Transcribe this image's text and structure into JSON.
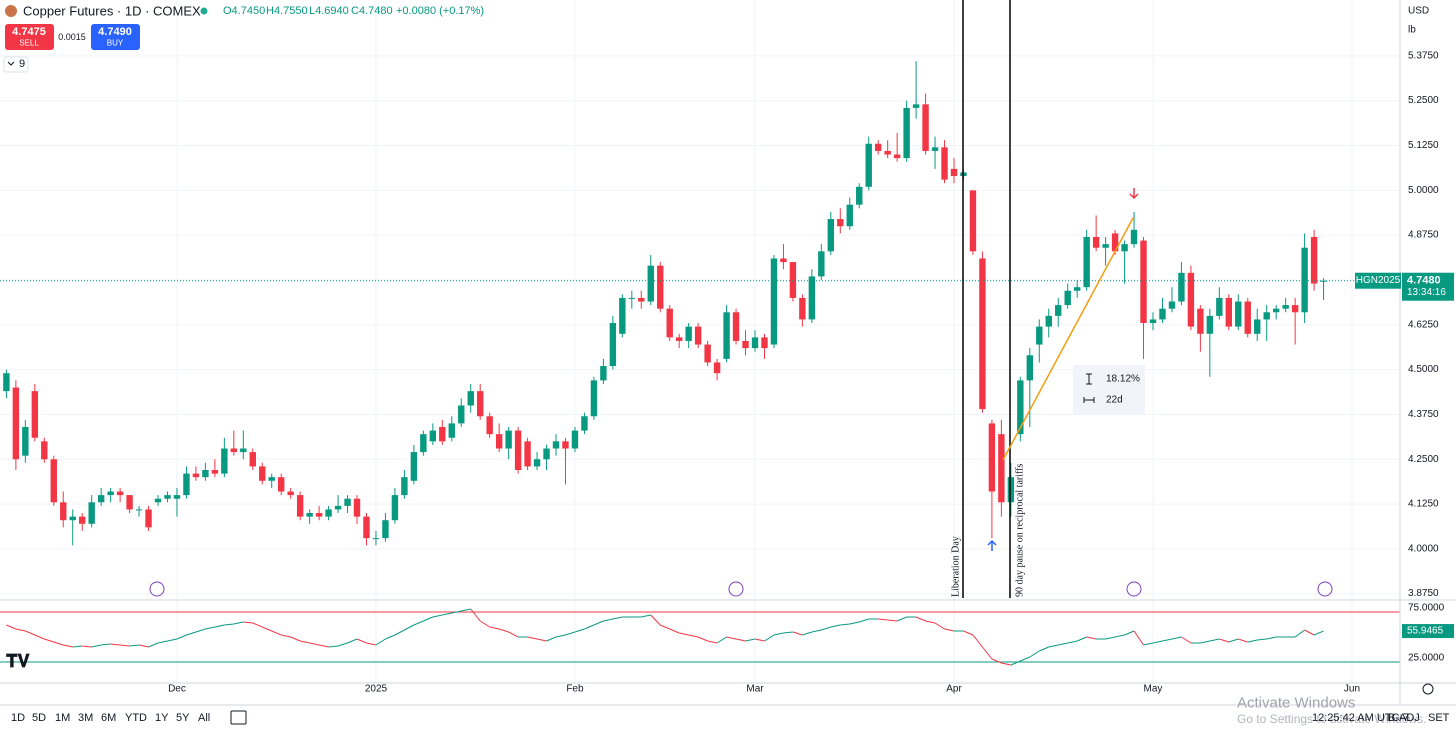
{
  "header": {
    "title": "Copper Futures · 1D · COMEX",
    "open": "O4.7450",
    "high": "H4.7550",
    "low": "L4.6940",
    "close": "C4.7480",
    "change": "+0.0080 (+0.17%)",
    "sell_price": "4.7475",
    "sell": "SELL",
    "spread": "0.0015",
    "buy_price": "4.7490",
    "buy": "BUY",
    "indicators": "9",
    "currency": "USD",
    "unit": "lb"
  },
  "toolbar": {
    "ranges": [
      "1D",
      "5D",
      "1M",
      "3M",
      "6M",
      "YTD",
      "1Y",
      "5Y",
      "All"
    ],
    "clock": "12:25:42 AM UTC-7",
    "adjust": "B-ADJ",
    "settlement": "SET"
  },
  "watermark": {
    "title": "Activate Windows",
    "text": "Go to Settings to activate Windows."
  },
  "chart_data": [
    {
      "type": "candlestick",
      "up_color": "#089981",
      "down_color": "#f23645",
      "grid": true,
      "categories": [
        null,
        null,
        null,
        null,
        null,
        null,
        null,
        null,
        null,
        null,
        null,
        null,
        null,
        null,
        null,
        null,
        null,
        null,
        "Dec",
        null,
        null,
        null,
        null,
        null,
        null,
        null,
        null,
        null,
        null,
        null,
        null,
        null,
        null,
        null,
        null,
        null,
        null,
        null,
        null,
        "2025",
        null,
        null,
        null,
        null,
        null,
        null,
        null,
        null,
        null,
        null,
        null,
        null,
        null,
        null,
        null,
        null,
        null,
        null,
        null,
        null,
        "Feb",
        null,
        null,
        null,
        null,
        null,
        null,
        null,
        null,
        null,
        null,
        null,
        null,
        null,
        null,
        null,
        null,
        null,
        null,
        "Mar",
        null,
        null,
        null,
        null,
        null,
        null,
        null,
        null,
        null,
        null,
        null,
        null,
        null,
        null,
        null,
        null,
        null,
        null,
        null,
        null,
        "Apr",
        null,
        null,
        null,
        null,
        null,
        null,
        null,
        null,
        null,
        null,
        null,
        null,
        null,
        null,
        null,
        null,
        null,
        null,
        null,
        null,
        "May",
        null,
        null,
        null,
        null,
        null,
        null,
        null,
        null,
        null,
        null,
        null,
        null,
        null,
        null,
        null,
        null,
        null,
        null,
        null,
        null,
        "Jun"
      ],
      "ohlc": [
        [
          4.44,
          4.5,
          4.42,
          4.49
        ],
        [
          4.45,
          4.47,
          4.22,
          4.25
        ],
        [
          4.26,
          4.36,
          4.24,
          4.34
        ],
        [
          4.44,
          4.46,
          4.3,
          4.31
        ],
        [
          4.3,
          4.31,
          4.24,
          4.25
        ],
        [
          4.25,
          4.26,
          4.12,
          4.13
        ],
        [
          4.13,
          4.16,
          4.06,
          4.08
        ],
        [
          4.08,
          4.11,
          4.01,
          4.09
        ],
        [
          4.09,
          4.1,
          4.05,
          4.07
        ],
        [
          4.07,
          4.15,
          4.06,
          4.13
        ],
        [
          4.13,
          4.17,
          4.12,
          4.15
        ],
        [
          4.15,
          4.17,
          4.13,
          4.16
        ],
        [
          4.16,
          4.17,
          4.13,
          4.15
        ],
        [
          4.15,
          4.15,
          4.1,
          4.11
        ],
        [
          4.11,
          4.12,
          4.09,
          4.11
        ],
        [
          4.11,
          4.12,
          4.05,
          4.06
        ],
        [
          4.13,
          4.15,
          4.12,
          4.14
        ],
        [
          4.14,
          4.16,
          4.13,
          4.15
        ],
        [
          4.14,
          4.17,
          4.09,
          4.15
        ],
        [
          4.15,
          4.23,
          4.14,
          4.21
        ],
        [
          4.21,
          4.23,
          4.19,
          4.2
        ],
        [
          4.2,
          4.24,
          4.19,
          4.22
        ],
        [
          4.22,
          4.25,
          4.2,
          4.21
        ],
        [
          4.21,
          4.31,
          4.2,
          4.28
        ],
        [
          4.28,
          4.33,
          4.26,
          4.27
        ],
        [
          4.27,
          4.33,
          4.25,
          4.28
        ],
        [
          4.27,
          4.28,
          4.22,
          4.23
        ],
        [
          4.23,
          4.24,
          4.18,
          4.19
        ],
        [
          4.19,
          4.21,
          4.17,
          4.2
        ],
        [
          4.2,
          4.21,
          4.15,
          4.16
        ],
        [
          4.16,
          4.17,
          4.14,
          4.15
        ],
        [
          4.15,
          4.16,
          4.08,
          4.09
        ],
        [
          4.09,
          4.11,
          4.07,
          4.1
        ],
        [
          4.1,
          4.12,
          4.08,
          4.09
        ],
        [
          4.09,
          4.12,
          4.08,
          4.11
        ],
        [
          4.11,
          4.15,
          4.1,
          4.12
        ],
        [
          4.12,
          4.15,
          4.1,
          4.14
        ],
        [
          4.14,
          4.15,
          4.07,
          4.09
        ],
        [
          4.09,
          4.1,
          4.01,
          4.03
        ],
        [
          4.03,
          4.05,
          4.01,
          4.03
        ],
        [
          4.03,
          4.1,
          4.02,
          4.08
        ],
        [
          4.08,
          4.17,
          4.07,
          4.15
        ],
        [
          4.15,
          4.22,
          4.14,
          4.2
        ],
        [
          4.19,
          4.29,
          4.18,
          4.27
        ],
        [
          4.27,
          4.33,
          4.26,
          4.32
        ],
        [
          4.3,
          4.35,
          4.29,
          4.33
        ],
        [
          4.34,
          4.36,
          4.29,
          4.3
        ],
        [
          4.31,
          4.37,
          4.3,
          4.35
        ],
        [
          4.35,
          4.42,
          4.34,
          4.4
        ],
        [
          4.4,
          4.46,
          4.38,
          4.44
        ],
        [
          4.44,
          4.46,
          4.36,
          4.37
        ],
        [
          4.37,
          4.38,
          4.31,
          4.32
        ],
        [
          4.32,
          4.35,
          4.27,
          4.28
        ],
        [
          4.28,
          4.34,
          4.25,
          4.33
        ],
        [
          4.33,
          4.34,
          4.21,
          4.22
        ],
        [
          4.3,
          4.31,
          4.22,
          4.23
        ],
        [
          4.23,
          4.27,
          4.22,
          4.25
        ],
        [
          4.25,
          4.29,
          4.22,
          4.28
        ],
        [
          4.28,
          4.32,
          4.26,
          4.3
        ],
        [
          4.3,
          4.31,
          4.18,
          4.28
        ],
        [
          4.28,
          4.34,
          4.27,
          4.33
        ],
        [
          4.33,
          4.38,
          4.32,
          4.37
        ],
        [
          4.37,
          4.48,
          4.36,
          4.47
        ],
        [
          4.47,
          4.53,
          4.46,
          4.51
        ],
        [
          4.51,
          4.65,
          4.5,
          4.63
        ],
        [
          4.6,
          4.71,
          4.59,
          4.7
        ],
        [
          4.7,
          4.72,
          4.67,
          4.7
        ],
        [
          4.7,
          4.72,
          4.67,
          4.69
        ],
        [
          4.69,
          4.82,
          4.68,
          4.79
        ],
        [
          4.79,
          4.8,
          4.66,
          4.67
        ],
        [
          4.67,
          4.68,
          4.58,
          4.59
        ],
        [
          4.59,
          4.6,
          4.56,
          4.58
        ],
        [
          4.58,
          4.63,
          4.56,
          4.62
        ],
        [
          4.62,
          4.63,
          4.56,
          4.57
        ],
        [
          4.57,
          4.58,
          4.51,
          4.52
        ],
        [
          4.52,
          4.53,
          4.47,
          4.49
        ],
        [
          4.53,
          4.68,
          4.52,
          4.66
        ],
        [
          4.66,
          4.67,
          4.57,
          4.58
        ],
        [
          4.58,
          4.61,
          4.54,
          4.56
        ],
        [
          4.56,
          4.61,
          4.55,
          4.59
        ],
        [
          4.59,
          4.6,
          4.53,
          4.56
        ],
        [
          4.57,
          4.82,
          4.56,
          4.81
        ],
        [
          4.81,
          4.85,
          4.78,
          4.8
        ],
        [
          4.8,
          4.8,
          4.69,
          4.7
        ],
        [
          4.7,
          4.71,
          4.62,
          4.64
        ],
        [
          4.64,
          4.78,
          4.63,
          4.76
        ],
        [
          4.76,
          4.85,
          4.75,
          4.83
        ],
        [
          4.83,
          4.94,
          4.82,
          4.92
        ],
        [
          4.92,
          4.95,
          4.88,
          4.9
        ],
        [
          4.9,
          4.98,
          4.89,
          4.96
        ],
        [
          4.96,
          5.02,
          4.95,
          5.01
        ],
        [
          5.01,
          5.15,
          5.0,
          5.13
        ],
        [
          5.13,
          5.14,
          5.1,
          5.11
        ],
        [
          5.11,
          5.14,
          5.09,
          5.1
        ],
        [
          5.1,
          5.16,
          5.08,
          5.09
        ],
        [
          5.09,
          5.25,
          5.08,
          5.23
        ],
        [
          5.23,
          5.36,
          5.2,
          5.24
        ],
        [
          5.24,
          5.27,
          5.1,
          5.11
        ],
        [
          5.11,
          5.15,
          5.06,
          5.12
        ],
        [
          5.12,
          5.14,
          5.02,
          5.03
        ],
        [
          5.06,
          5.09,
          5.02,
          5.04
        ],
        [
          5.04,
          5.06,
          5.03,
          5.05
        ],
        [
          5.0,
          5.0,
          4.82,
          4.83
        ],
        [
          4.81,
          4.83,
          4.38,
          4.39
        ],
        [
          4.35,
          4.36,
          4.03,
          4.16
        ],
        [
          4.32,
          4.36,
          4.09,
          4.13
        ],
        [
          4.13,
          4.24,
          4.09,
          4.2
        ],
        [
          4.32,
          4.48,
          4.3,
          4.47
        ],
        [
          4.47,
          4.56,
          4.34,
          4.54
        ],
        [
          4.57,
          4.64,
          4.52,
          4.62
        ],
        [
          4.62,
          4.67,
          4.59,
          4.65
        ],
        [
          4.65,
          4.7,
          4.62,
          4.68
        ],
        [
          4.68,
          4.74,
          4.67,
          4.72
        ],
        [
          4.72,
          4.75,
          4.7,
          4.73
        ],
        [
          4.73,
          4.89,
          4.72,
          4.87
        ],
        [
          4.87,
          4.93,
          4.83,
          4.84
        ],
        [
          4.84,
          4.87,
          4.79,
          4.85
        ],
        [
          4.88,
          4.89,
          4.82,
          4.83
        ],
        [
          4.83,
          4.86,
          4.74,
          4.85
        ],
        [
          4.85,
          4.94,
          4.84,
          4.89
        ],
        [
          4.86,
          4.87,
          4.53,
          4.63
        ],
        [
          4.63,
          4.66,
          4.61,
          4.64
        ],
        [
          4.64,
          4.7,
          4.63,
          4.67
        ],
        [
          4.67,
          4.73,
          4.66,
          4.69
        ],
        [
          4.69,
          4.8,
          4.68,
          4.77
        ],
        [
          4.77,
          4.79,
          4.61,
          4.62
        ],
        [
          4.67,
          4.68,
          4.55,
          4.6
        ],
        [
          4.6,
          4.67,
          4.48,
          4.65
        ],
        [
          4.65,
          4.73,
          4.64,
          4.7
        ],
        [
          4.7,
          4.71,
          4.61,
          4.62
        ],
        [
          4.62,
          4.71,
          4.61,
          4.69
        ],
        [
          4.69,
          4.7,
          4.59,
          4.6
        ],
        [
          4.6,
          4.67,
          4.58,
          4.64
        ],
        [
          4.64,
          4.68,
          4.58,
          4.66
        ],
        [
          4.66,
          4.68,
          4.64,
          4.67
        ],
        [
          4.67,
          4.7,
          4.66,
          4.68
        ],
        [
          4.68,
          4.7,
          4.57,
          4.66
        ],
        [
          4.66,
          4.88,
          4.63,
          4.84
        ],
        [
          4.87,
          4.89,
          4.72,
          4.74
        ],
        [
          4.745,
          4.755,
          4.694,
          4.748
        ],
        null,
        null,
        null
      ],
      "ylim": [
        3.863,
        5.531
      ],
      "yticks": [
        {
          "value": 3.875,
          "label": "3.8750"
        },
        {
          "value": 4,
          "label": "4.0000"
        },
        {
          "value": 4.125,
          "label": "4.1250"
        },
        {
          "value": 4.25,
          "label": "4.2500"
        },
        {
          "value": 4.375,
          "label": "4.3750"
        },
        {
          "value": 4.5,
          "label": "4.5000"
        },
        {
          "value": 4.625,
          "label": "4.6250"
        },
        {
          "value": 4.75,
          "label": "4.7500"
        },
        {
          "value": 4.875,
          "label": "4.8750"
        },
        {
          "value": 5,
          "label": "5.0000"
        },
        {
          "value": 5.125,
          "label": "5.1250"
        },
        {
          "value": 5.25,
          "label": "5.2500"
        },
        {
          "value": 5.375,
          "label": "5.3750"
        }
      ],
      "last_label": {
        "symbol": "HGN2025",
        "price": "4.7480",
        "countdown": "13:34:16"
      },
      "annotations": [
        "Liberation Day",
        "90 day pause on reciprocal tariffs"
      ],
      "measure": {
        "change": "18.12%",
        "span": "22d"
      }
    },
    {
      "type": "line",
      "up_color": "#089981",
      "down_color": "#f23645",
      "values": [
        62,
        58,
        56,
        52,
        48,
        45,
        42,
        40,
        41,
        40,
        42,
        43,
        42,
        41,
        42,
        40,
        44,
        46,
        48,
        52,
        55,
        58,
        60,
        62,
        63,
        65,
        64,
        60,
        56,
        52,
        50,
        46,
        44,
        42,
        40,
        41,
        44,
        48,
        44,
        42,
        48,
        52,
        57,
        62,
        66,
        70,
        72,
        74,
        76,
        78,
        66,
        60,
        58,
        55,
        50,
        50,
        48,
        46,
        50,
        52,
        55,
        58,
        62,
        66,
        68,
        70,
        70,
        70,
        72,
        62,
        58,
        54,
        52,
        50,
        46,
        44,
        50,
        48,
        46,
        48,
        46,
        52,
        54,
        55,
        52,
        55,
        57,
        60,
        62,
        63,
        65,
        68,
        68,
        67,
        66,
        70,
        70,
        66,
        64,
        58,
        56,
        56,
        52,
        40,
        28,
        24,
        22,
        26,
        30,
        36,
        40,
        42,
        44,
        46,
        50,
        48,
        48,
        50,
        52,
        56,
        42,
        44,
        46,
        48,
        50,
        44,
        44,
        46,
        48,
        45,
        48,
        45,
        47,
        48,
        50,
        50,
        50,
        57,
        52,
        55.9465,
        null,
        null,
        null
      ],
      "ylim": [
        4,
        87
      ],
      "yticks": [
        {
          "value": 75,
          "label": "75.0000",
          "color": "#f23645"
        },
        {
          "value": 25,
          "label": "25.0000",
          "color": "#089981"
        }
      ]
    }
  ]
}
